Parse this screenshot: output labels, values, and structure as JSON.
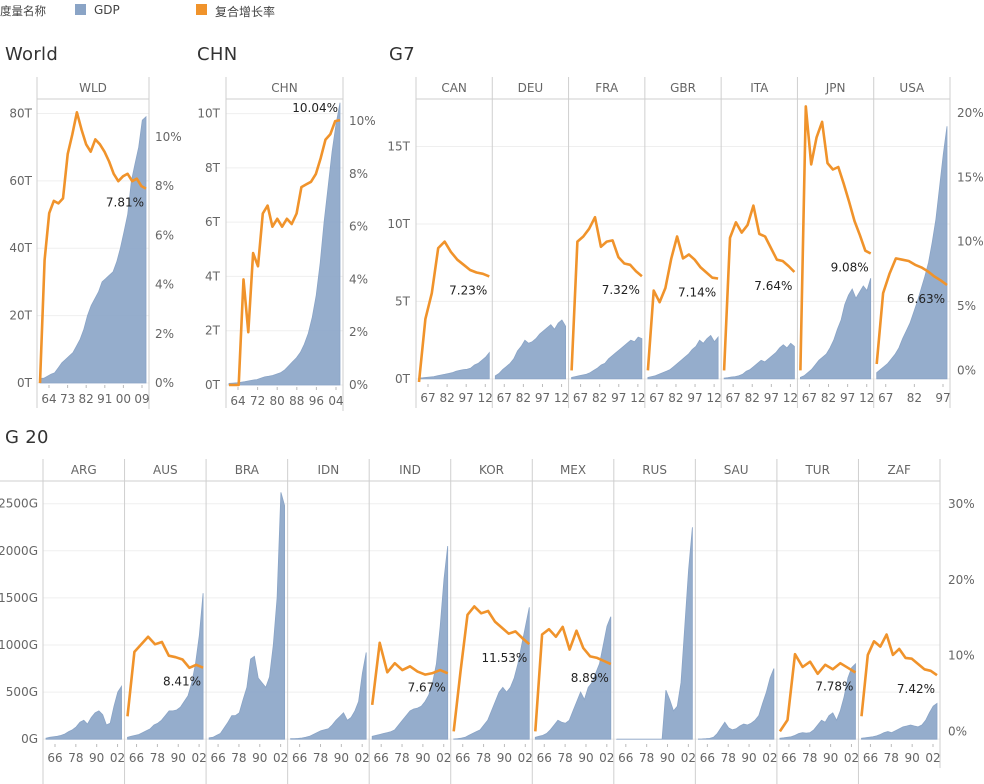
{
  "legend": {
    "title": "度量名称",
    "gdp_label": "GDP",
    "growth_label": "复合增长率",
    "gdp_color": "#8aa4c6",
    "growth_color": "#f0932b"
  },
  "sections": {
    "world": "World",
    "chn": "CHN",
    "g7": "G7",
    "g20": "G 20"
  },
  "chart_data": [
    {
      "type": "area+line",
      "group": "World",
      "gdp_ticks": [
        "0T",
        "20T",
        "40T",
        "60T",
        "80T"
      ],
      "gdp_ylim": [
        0,
        84
      ],
      "growth_ticks": [
        "0%",
        "2%",
        "4%",
        "6%",
        "8%",
        "10%"
      ],
      "growth_ylim": [
        0,
        11.5
      ],
      "panels": [
        {
          "code": "WLD",
          "x_ticks": [
            "64",
            "73",
            "82",
            "91",
            "00",
            "09"
          ],
          "label": "7.81%",
          "gdp": [
            1.4,
            1.4,
            2,
            2.6,
            3,
            4.5,
            6,
            7,
            8,
            9,
            11,
            13,
            16,
            20,
            23,
            25,
            27,
            30,
            31,
            32,
            33,
            36,
            40,
            45,
            50,
            60,
            65,
            70,
            78,
            79
          ],
          "growth": [
            0,
            5,
            6.9,
            7.4,
            7.3,
            7.5,
            9.3,
            10.1,
            11.0,
            10.3,
            9.7,
            9.4,
            9.9,
            9.7,
            9.4,
            9.0,
            8.5,
            8.2,
            8.4,
            8.5,
            8.2,
            8.3,
            8.0,
            7.9
          ]
        }
      ]
    },
    {
      "type": "area+line",
      "group": "CHN",
      "gdp_ticks": [
        "0T",
        "2T",
        "4T",
        "6T",
        "8T",
        "10T"
      ],
      "gdp_ylim": [
        0,
        10.5
      ],
      "growth_ticks": [
        "0%",
        "2%",
        "4%",
        "6%",
        "8%",
        "10%"
      ],
      "growth_ylim": [
        0,
        10.8
      ],
      "panels": [
        {
          "code": "CHN",
          "x_ticks": [
            "64",
            "72",
            "80",
            "88",
            "96",
            "04"
          ],
          "label": "10.04%",
          "gdp": [
            0.06,
            0.07,
            0.08,
            0.1,
            0.12,
            0.15,
            0.18,
            0.2,
            0.25,
            0.3,
            0.32,
            0.35,
            0.4,
            0.45,
            0.55,
            0.7,
            0.85,
            1.0,
            1.2,
            1.5,
            1.9,
            2.5,
            3.3,
            4.5,
            6.0,
            7.3,
            8.6,
            9.6,
            10.4
          ],
          "growth": [
            0,
            0,
            0,
            4,
            2,
            5,
            4.5,
            6.5,
            6.8,
            6.0,
            6.3,
            6.0,
            6.3,
            6.1,
            6.5,
            7.5,
            7.6,
            7.7,
            8.0,
            8.6,
            9.3,
            9.5,
            10.0,
            10.04
          ]
        }
      ]
    },
    {
      "type": "area+line",
      "group": "G7",
      "gdp_ticks": [
        "0T",
        "5T",
        "10T",
        "15T"
      ],
      "gdp_ylim": [
        -0.2,
        18
      ],
      "growth_ticks": [
        "0%",
        "5%",
        "10%",
        "15%",
        "20%"
      ],
      "growth_ylim": [
        -0.9,
        21
      ],
      "panels": [
        {
          "code": "CAN",
          "x_ticks": [
            "67",
            "82",
            "97",
            "12"
          ],
          "label": "7.23%",
          "gdp": [
            0.05,
            0.07,
            0.1,
            0.12,
            0.15,
            0.2,
            0.25,
            0.3,
            0.35,
            0.4,
            0.5,
            0.55,
            0.6,
            0.62,
            0.7,
            0.9,
            1.0,
            1.2,
            1.4,
            1.7
          ],
          "growth": [
            -0.9,
            4,
            6,
            9.5,
            10.0,
            9.2,
            8.6,
            8.2,
            7.8,
            7.6,
            7.5,
            7.3
          ]
        },
        {
          "code": "DEU",
          "x_ticks": [
            "67",
            "82",
            "97",
            "12"
          ],
          "label": "",
          "gdp": [
            0.2,
            0.35,
            0.6,
            0.8,
            1.0,
            1.3,
            1.8,
            2.1,
            2.5,
            2.3,
            2.4,
            2.6,
            2.9,
            3.1,
            3.3,
            3.5,
            3.2,
            3.6,
            3.8,
            3.4
          ],
          "growth": []
        },
        {
          "code": "FRA",
          "x_ticks": [
            "67",
            "82",
            "97",
            "12"
          ],
          "label": "7.32%",
          "gdp": [
            0.1,
            0.15,
            0.2,
            0.25,
            0.3,
            0.4,
            0.55,
            0.7,
            0.9,
            1.0,
            1.3,
            1.5,
            1.7,
            1.9,
            2.1,
            2.3,
            2.5,
            2.4,
            2.7,
            2.6
          ],
          "growth": [
            0,
            10.0,
            10.4,
            11.0,
            11.9,
            9.6,
            10.0,
            10.1,
            8.8,
            8.3,
            8.2,
            7.7,
            7.32
          ]
        },
        {
          "code": "GBR",
          "x_ticks": [
            "67",
            "82",
            "97",
            "12"
          ],
          "label": "7.14%",
          "gdp": [
            0.1,
            0.15,
            0.2,
            0.3,
            0.4,
            0.5,
            0.6,
            0.8,
            1.0,
            1.2,
            1.4,
            1.6,
            1.9,
            2.1,
            2.5,
            2.3,
            2.6,
            2.8,
            2.4,
            2.7
          ],
          "growth": [
            0,
            6.2,
            5.3,
            6.4,
            8.7,
            10.4,
            8.7,
            9.0,
            8.6,
            8.0,
            7.6,
            7.2,
            7.14
          ]
        },
        {
          "code": "ITA",
          "x_ticks": [
            "67",
            "82",
            "97",
            "12"
          ],
          "label": "7.64%",
          "gdp": [
            0.05,
            0.08,
            0.12,
            0.15,
            0.2,
            0.3,
            0.5,
            0.6,
            0.8,
            1.0,
            1.2,
            1.1,
            1.3,
            1.5,
            1.7,
            2.0,
            2.2,
            2.0,
            2.3,
            2.1
          ],
          "growth": [
            0,
            10.3,
            11.5,
            10.7,
            11.3,
            12.8,
            10.6,
            10.4,
            9.5,
            8.6,
            8.5,
            8.1,
            7.64
          ]
        },
        {
          "code": "JPN",
          "x_ticks": [
            "67",
            "82",
            "97",
            "12"
          ],
          "label": "9.08%",
          "gdp": [
            0.1,
            0.2,
            0.4,
            0.6,
            0.9,
            1.2,
            1.4,
            1.6,
            2.0,
            2.5,
            3.2,
            3.8,
            4.8,
            5.4,
            5.8,
            5.2,
            5.6,
            6.0,
            5.7,
            6.5
          ],
          "growth": [
            0,
            20.5,
            16.0,
            18.1,
            19.3,
            16.1,
            15.6,
            15.8,
            14.5,
            13.1,
            11.6,
            10.5,
            9.3,
            9.08
          ]
        },
        {
          "code": "USA",
          "x_ticks": [
            "67",
            "82",
            "97"
          ],
          "label": "6.63%",
          "gdp": [
            0.4,
            0.6,
            0.8,
            1.0,
            1.3,
            1.6,
            2.0,
            2.6,
            3.1,
            3.6,
            4.3,
            5.0,
            5.8,
            6.6,
            7.5,
            8.8,
            10.3,
            12.4,
            14.5,
            16.3
          ],
          "growth": [
            0.5,
            6.0,
            7.5,
            8.7,
            8.6,
            8.5,
            8.2,
            8.0,
            7.7,
            7.3,
            7.0,
            6.63
          ]
        }
      ]
    },
    {
      "type": "area+line",
      "group": "G 20",
      "gdp_ticks": [
        "0G",
        "500G",
        "1000G",
        "1500G",
        "2000G",
        "2500G"
      ],
      "gdp_ylim": [
        -30,
        2720
      ],
      "growth_ticks": [
        "0%",
        "10%",
        "20%",
        "30%"
      ],
      "growth_ylim": [
        -1.4,
        32.8
      ],
      "panels": [
        {
          "code": "ARG",
          "x_ticks": [
            "66",
            "78",
            "90",
            "02"
          ],
          "label": "",
          "gdp": [
            10,
            20,
            25,
            30,
            40,
            55,
            80,
            100,
            130,
            180,
            200,
            160,
            230,
            280,
            300,
            260,
            150,
            170,
            350,
            500,
            560
          ],
          "growth": []
        },
        {
          "code": "AUS",
          "x_ticks": [
            "66",
            "78",
            "90",
            "02"
          ],
          "label": "8.41%",
          "gdp": [
            20,
            30,
            40,
            50,
            70,
            90,
            110,
            150,
            170,
            200,
            250,
            300,
            300,
            310,
            340,
            400,
            460,
            600,
            800,
            1100,
            1550
          ],
          "growth": [
            2,
            10.5,
            11.5,
            12.5,
            11.5,
            11.8,
            10.0,
            9.8,
            9.5,
            8.4,
            8.8,
            8.41
          ]
        },
        {
          "code": "BRA",
          "x_ticks": [
            "66",
            "78",
            "90",
            "02"
          ],
          "label": "",
          "gdp": [
            15,
            20,
            40,
            60,
            120,
            180,
            250,
            250,
            280,
            420,
            550,
            850,
            880,
            650,
            600,
            550,
            660,
            1000,
            1500,
            2620,
            2480
          ],
          "growth": []
        },
        {
          "code": "IDN",
          "x_ticks": [
            "66",
            "78",
            "90",
            "02"
          ],
          "label": "",
          "gdp": [
            5,
            6,
            8,
            12,
            20,
            30,
            50,
            70,
            90,
            100,
            110,
            150,
            200,
            240,
            280,
            200,
            230,
            300,
            400,
            700,
            920
          ],
          "growth": []
        },
        {
          "code": "IND",
          "x_ticks": [
            "66",
            "78",
            "90",
            "02"
          ],
          "label": "7.67%",
          "gdp": [
            30,
            40,
            50,
            60,
            70,
            80,
            100,
            150,
            200,
            250,
            300,
            320,
            330,
            350,
            400,
            470,
            600,
            800,
            1200,
            1700,
            2050
          ],
          "growth": [
            3.5,
            11.7,
            7.8,
            9.0,
            8.1,
            8.6,
            7.9,
            7.5,
            7.7,
            8.1,
            7.67
          ]
        },
        {
          "code": "KOR",
          "x_ticks": [
            "66",
            "78",
            "90",
            "02"
          ],
          "label": "11.53%",
          "gdp": [
            2,
            5,
            10,
            20,
            40,
            60,
            80,
            100,
            150,
            200,
            300,
            400,
            500,
            550,
            500,
            550,
            650,
            800,
            1000,
            1200,
            1400
          ],
          "growth": [
            0,
            8.0,
            15.4,
            16.5,
            15.6,
            15.9,
            14.5,
            13.7,
            12.9,
            13.2,
            12.3,
            11.53
          ]
        },
        {
          "code": "MEX",
          "x_ticks": [
            "66",
            "78",
            "90",
            "02"
          ],
          "label": "8.89%",
          "gdp": [
            20,
            30,
            40,
            60,
            100,
            150,
            200,
            180,
            170,
            200,
            300,
            400,
            500,
            420,
            550,
            600,
            700,
            800,
            1000,
            1200,
            1300
          ],
          "growth": [
            0,
            12.8,
            13.5,
            12.5,
            13.8,
            10.8,
            13.3,
            11.0,
            9.9,
            9.7,
            9.3,
            8.89
          ]
        },
        {
          "code": "RUS",
          "x_ticks": [
            "66",
            "78",
            "90",
            "02"
          ],
          "label": "",
          "gdp": [
            0,
            0,
            0,
            0,
            0,
            0,
            0,
            0,
            0,
            0,
            0,
            0,
            0,
            520,
            420,
            300,
            350,
            600,
            1200,
            1800,
            2250
          ],
          "growth": []
        },
        {
          "code": "SAU",
          "x_ticks": [
            "66",
            "78",
            "90",
            "02"
          ],
          "label": "",
          "gdp": [
            2,
            3,
            5,
            8,
            20,
            60,
            120,
            180,
            120,
            100,
            110,
            140,
            160,
            150,
            170,
            200,
            250,
            380,
            500,
            650,
            750
          ],
          "growth": []
        },
        {
          "code": "TUR",
          "x_ticks": [
            "66",
            "78",
            "90",
            "02"
          ],
          "label": "7.78%",
          "gdp": [
            10,
            15,
            20,
            25,
            40,
            60,
            70,
            65,
            70,
            100,
            150,
            200,
            180,
            250,
            280,
            200,
            300,
            450,
            650,
            760,
            800
          ],
          "growth": [
            0,
            1.5,
            10.2,
            8.5,
            9.2,
            7.6,
            8.8,
            8.2,
            9.0,
            8.4,
            7.78
          ]
        },
        {
          "code": "ZAF",
          "x_ticks": [
            "66",
            "78",
            "90",
            "02"
          ],
          "label": "7.42%",
          "gdp": [
            10,
            15,
            20,
            25,
            35,
            50,
            70,
            80,
            70,
            90,
            110,
            130,
            140,
            150,
            140,
            130,
            150,
            200,
            280,
            350,
            380
          ],
          "growth": [
            2,
            10.1,
            11.9,
            11.2,
            12.8,
            10.1,
            10.9,
            9.7,
            9.6,
            8.9,
            8.2,
            8.0,
            7.42
          ]
        }
      ]
    }
  ]
}
